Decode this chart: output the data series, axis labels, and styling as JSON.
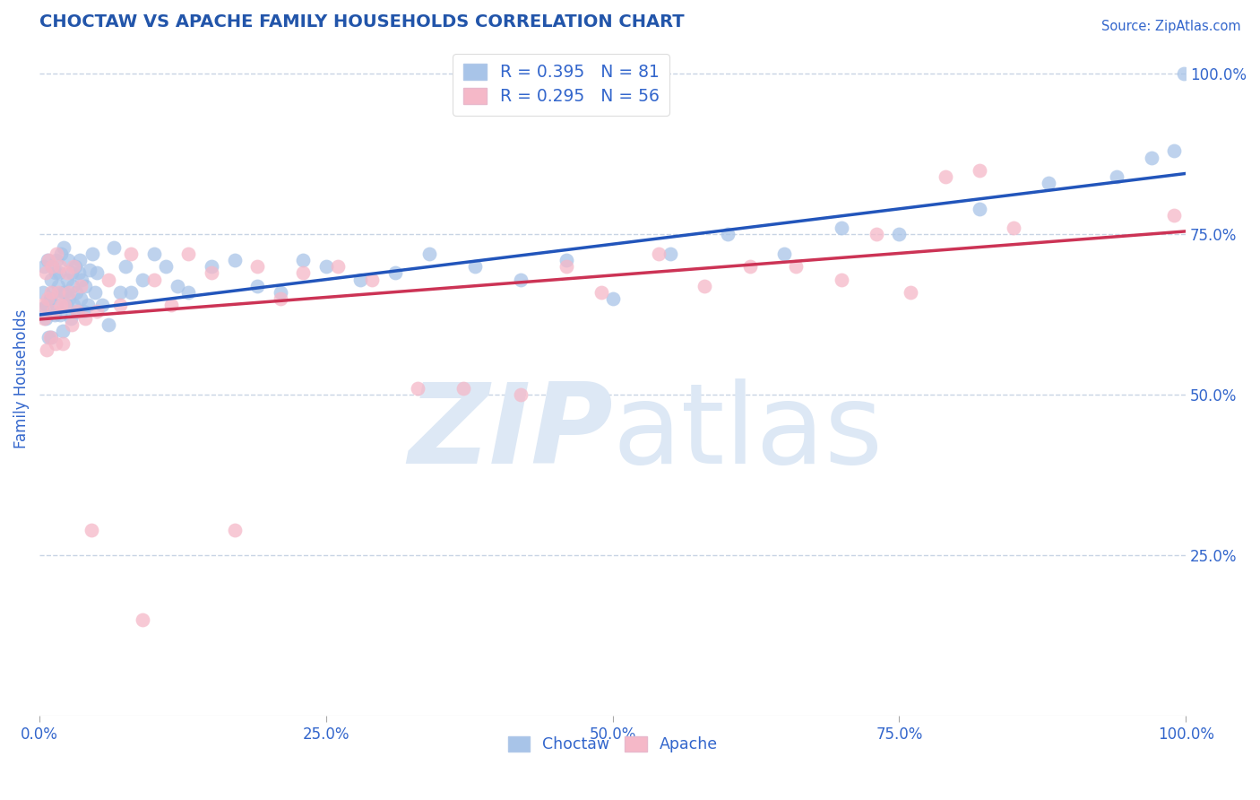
{
  "title": "CHOCTAW VS APACHE FAMILY HOUSEHOLDS CORRELATION CHART",
  "source_text": "Source: ZipAtlas.com",
  "ylabel": "Family Households",
  "choctaw_R": 0.395,
  "choctaw_N": 81,
  "apache_R": 0.295,
  "apache_N": 56,
  "choctaw_color": "#a8c4e8",
  "apache_color": "#f5b8c8",
  "choctaw_line_color": "#2255bb",
  "apache_line_color": "#cc3355",
  "title_color": "#2255aa",
  "axis_label_color": "#3366cc",
  "grid_color": "#c8d4e4",
  "background_color": "#ffffff",
  "watermark_color": "#dde8f5",
  "xlim": [
    0,
    1
  ],
  "ylim": [
    0,
    1.05
  ],
  "yticks": [
    0.25,
    0.5,
    0.75,
    1.0
  ],
  "ytick_labels": [
    "25.0%",
    "50.0%",
    "75.0%",
    "100.0%"
  ],
  "xticks": [
    0,
    0.25,
    0.5,
    0.75,
    1.0
  ],
  "xtick_labels": [
    "0.0%",
    "25.0%",
    "50.0%",
    "75.0%",
    "100.0%"
  ],
  "choctaw_x": [
    0.002,
    0.003,
    0.004,
    0.005,
    0.006,
    0.007,
    0.008,
    0.009,
    0.01,
    0.01,
    0.011,
    0.012,
    0.013,
    0.014,
    0.015,
    0.015,
    0.016,
    0.017,
    0.018,
    0.019,
    0.02,
    0.02,
    0.021,
    0.022,
    0.023,
    0.024,
    0.025,
    0.026,
    0.027,
    0.028,
    0.029,
    0.03,
    0.031,
    0.032,
    0.033,
    0.034,
    0.035,
    0.036,
    0.037,
    0.038,
    0.04,
    0.042,
    0.044,
    0.046,
    0.048,
    0.05,
    0.055,
    0.06,
    0.065,
    0.07,
    0.075,
    0.08,
    0.09,
    0.1,
    0.11,
    0.12,
    0.13,
    0.15,
    0.17,
    0.19,
    0.21,
    0.23,
    0.25,
    0.28,
    0.31,
    0.34,
    0.38,
    0.42,
    0.46,
    0.5,
    0.55,
    0.6,
    0.65,
    0.7,
    0.75,
    0.82,
    0.88,
    0.94,
    0.97,
    0.99,
    0.998
  ],
  "choctaw_y": [
    0.635,
    0.66,
    0.7,
    0.62,
    0.64,
    0.71,
    0.59,
    0.65,
    0.68,
    0.59,
    0.7,
    0.66,
    0.625,
    0.69,
    0.71,
    0.64,
    0.67,
    0.69,
    0.625,
    0.72,
    0.66,
    0.6,
    0.73,
    0.66,
    0.64,
    0.68,
    0.71,
    0.65,
    0.62,
    0.69,
    0.67,
    0.64,
    0.7,
    0.66,
    0.63,
    0.69,
    0.71,
    0.65,
    0.68,
    0.63,
    0.67,
    0.64,
    0.695,
    0.72,
    0.66,
    0.69,
    0.64,
    0.61,
    0.73,
    0.66,
    0.7,
    0.66,
    0.68,
    0.72,
    0.7,
    0.67,
    0.66,
    0.7,
    0.71,
    0.67,
    0.66,
    0.71,
    0.7,
    0.68,
    0.69,
    0.72,
    0.7,
    0.68,
    0.71,
    0.65,
    0.72,
    0.75,
    0.72,
    0.76,
    0.75,
    0.79,
    0.83,
    0.84,
    0.87,
    0.88,
    1.0
  ],
  "apache_x": [
    0.002,
    0.004,
    0.005,
    0.006,
    0.007,
    0.008,
    0.009,
    0.01,
    0.011,
    0.012,
    0.014,
    0.015,
    0.016,
    0.018,
    0.019,
    0.02,
    0.022,
    0.024,
    0.026,
    0.028,
    0.03,
    0.033,
    0.036,
    0.04,
    0.045,
    0.05,
    0.06,
    0.07,
    0.08,
    0.09,
    0.1,
    0.115,
    0.13,
    0.15,
    0.17,
    0.19,
    0.21,
    0.23,
    0.26,
    0.29,
    0.33,
    0.37,
    0.42,
    0.46,
    0.49,
    0.54,
    0.58,
    0.62,
    0.66,
    0.7,
    0.73,
    0.76,
    0.79,
    0.82,
    0.85,
    0.99
  ],
  "apache_y": [
    0.64,
    0.62,
    0.69,
    0.57,
    0.65,
    0.71,
    0.59,
    0.66,
    0.7,
    0.63,
    0.58,
    0.72,
    0.66,
    0.7,
    0.64,
    0.58,
    0.64,
    0.69,
    0.66,
    0.61,
    0.7,
    0.63,
    0.67,
    0.62,
    0.29,
    0.63,
    0.68,
    0.64,
    0.72,
    0.15,
    0.68,
    0.64,
    0.72,
    0.69,
    0.29,
    0.7,
    0.65,
    0.69,
    0.7,
    0.68,
    0.51,
    0.51,
    0.5,
    0.7,
    0.66,
    0.72,
    0.67,
    0.7,
    0.7,
    0.68,
    0.75,
    0.66,
    0.84,
    0.85,
    0.76,
    0.78
  ],
  "regression_choctaw": [
    0.625,
    0.845
  ],
  "regression_apache": [
    0.618,
    0.755
  ]
}
